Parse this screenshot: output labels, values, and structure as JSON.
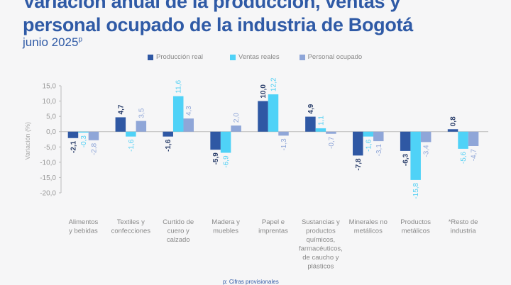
{
  "title_line1": "Variación anual de la producción, ventas y",
  "title_line2": "personal ocupado de la industria de Bogotá",
  "subtitle": "junio 2025",
  "subtitle_sup": "p",
  "footnote": "p: Cifras provisionales",
  "chart_data": {
    "type": "bar",
    "title": "Variación anual de la producción, ventas y personal ocupado de la industria de Bogotá",
    "subtitle": "junio 2025p",
    "ylabel": "Variación (%)",
    "xlabel": "",
    "ylim": [
      -20,
      15
    ],
    "yticks": [
      "15,0",
      "10,0",
      "5,0",
      "0,0",
      "-5,0",
      "-10,0",
      "-15,0",
      "-20,0"
    ],
    "ytick_values": [
      15,
      10,
      5,
      0,
      -5,
      -10,
      -15,
      -20
    ],
    "grid": false,
    "legend_position": "top",
    "categories": [
      [
        "Alimentos",
        "y bebidas"
      ],
      [
        "Textiles y",
        "confecciones"
      ],
      [
        "Curtido de",
        "cuero y",
        "calzado"
      ],
      [
        "Madera y",
        "muebles"
      ],
      [
        "Papel e",
        "imprentas"
      ],
      [
        "Sustancias y",
        "productos",
        "químicos,",
        "farmacéuticos,",
        "de caucho y",
        "plásticos"
      ],
      [
        "Minerales no",
        "metálicos"
      ],
      [
        "Productos",
        "metálicos"
      ],
      [
        "*Resto de",
        "industria"
      ]
    ],
    "series": [
      {
        "name": "Producción real",
        "color": "#2f58a4",
        "label_color": "#2b3f6b",
        "values": [
          -2.1,
          4.7,
          -1.6,
          -5.9,
          10.0,
          4.9,
          -7.8,
          -6.3,
          0.8
        ],
        "labels": [
          "-2,1",
          "4,7",
          "-1,6",
          "-5,9",
          "10,0",
          "4,9",
          "-7,8",
          "-6,3",
          "0,8"
        ]
      },
      {
        "name": "Ventas reales",
        "color": "#4fd2f7",
        "label_color": "#4fcff4",
        "values": [
          -0.3,
          -1.6,
          11.6,
          -6.9,
          12.2,
          1.1,
          -1.6,
          -15.8,
          -5.6
        ],
        "labels": [
          "-0,3",
          "-1,6",
          "11,6",
          "-6,9",
          "12,2",
          "1,1",
          "-1,6",
          "-15,8",
          "-5,6"
        ]
      },
      {
        "name": "Personal ocupado",
        "color": "#8fa6d8",
        "label_color": "#8fa6d8",
        "values": [
          -2.8,
          3.5,
          4.3,
          2.0,
          -1.3,
          -0.7,
          -3.1,
          -3.4,
          -4.7
        ],
        "labels": [
          "-2,8",
          "3,5",
          "4,3",
          "2,0",
          "-1,3",
          "-0,7",
          "-3,1",
          "-3,4",
          "-4,7"
        ]
      }
    ]
  }
}
